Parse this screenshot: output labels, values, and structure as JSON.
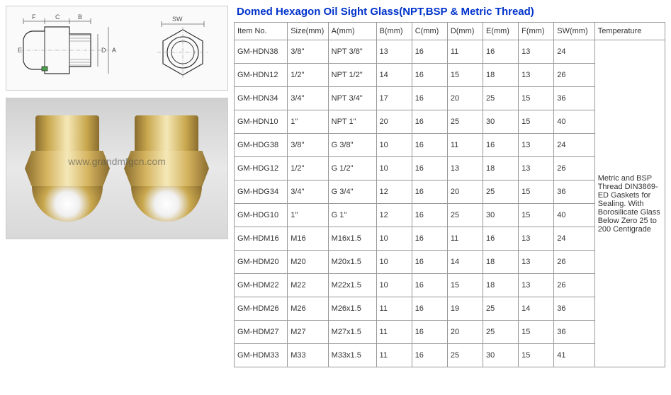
{
  "title": "Domed Hexagon Oil Sight Glass(NPT,BSP & Metric Thread)",
  "watermark": "www.grandmfgcn.com",
  "drawing_labels": {
    "F": "F",
    "C": "C",
    "B": "B",
    "E": "E",
    "D": "D",
    "A": "A",
    "SW": "SW"
  },
  "table": {
    "columns": [
      "Item No.",
      "Size(mm)",
      "A(mm)",
      "B(mm)",
      "C(mm)",
      "D(mm)",
      "E(mm)",
      "F(mm)",
      "SW(mm)",
      "Temperature"
    ],
    "rows": [
      {
        "item": "GM-HDN38",
        "size": "3/8\"",
        "a": "NPT 3/8\"",
        "b": "13",
        "c": "16",
        "d": "11",
        "e": "16",
        "f": "13",
        "sw": "24"
      },
      {
        "item": "GM-HDN12",
        "size": "1/2\"",
        "a": "NPT 1/2\"",
        "b": "14",
        "c": "16",
        "d": "15",
        "e": "18",
        "f": "13",
        "sw": "26"
      },
      {
        "item": "GM-HDN34",
        "size": "3/4\"",
        "a": "NPT 3/4\"",
        "b": "17",
        "c": "16",
        "d": "20",
        "e": "25",
        "f": "15",
        "sw": "36"
      },
      {
        "item": "GM-HDN10",
        "size": "1\"",
        "a": "NPT 1\"",
        "b": "20",
        "c": "16",
        "d": "25",
        "e": "30",
        "f": "15",
        "sw": "40"
      },
      {
        "item": "GM-HDG38",
        "size": "3/8\"",
        "a": "G 3/8\"",
        "b": "10",
        "c": "16",
        "d": "11",
        "e": "16",
        "f": "13",
        "sw": "24"
      },
      {
        "item": "GM-HDG12",
        "size": "1/2\"",
        "a": "G 1/2\"",
        "b": "10",
        "c": "16",
        "d": "13",
        "e": "18",
        "f": "13",
        "sw": "26"
      },
      {
        "item": "GM-HDG34",
        "size": "3/4\"",
        "a": "G 3/4\"",
        "b": "12",
        "c": "16",
        "d": "20",
        "e": "25",
        "f": "15",
        "sw": "36"
      },
      {
        "item": "GM-HDG10",
        "size": "1\"",
        "a": "G 1\"",
        "b": "12",
        "c": "16",
        "d": "25",
        "e": "30",
        "f": "15",
        "sw": "40"
      },
      {
        "item": "GM-HDM16",
        "size": "M16",
        "a": "M16x1.5",
        "b": "10",
        "c": "16",
        "d": "11",
        "e": "16",
        "f": "13",
        "sw": "24"
      },
      {
        "item": "GM-HDM20",
        "size": "M20",
        "a": "M20x1.5",
        "b": "10",
        "c": "16",
        "d": "14",
        "e": "18",
        "f": "13",
        "sw": "26"
      },
      {
        "item": "GM-HDM22",
        "size": "M22",
        "a": "M22x1.5",
        "b": "10",
        "c": "16",
        "d": "15",
        "e": "18",
        "f": "13",
        "sw": "26"
      },
      {
        "item": "GM-HDM26",
        "size": "M26",
        "a": "M26x1.5",
        "b": "11",
        "c": "16",
        "d": "19",
        "e": "25",
        "f": "14",
        "sw": "36"
      },
      {
        "item": "GM-HDM27",
        "size": "M27",
        "a": "M27x1.5",
        "b": "11",
        "c": "16",
        "d": "20",
        "e": "25",
        "f": "15",
        "sw": "36"
      },
      {
        "item": "GM-HDM33",
        "size": "M33",
        "a": "M33x1.5",
        "b": "11",
        "c": "16",
        "d": "25",
        "e": "30",
        "f": "15",
        "sw": "41"
      }
    ],
    "temperature_note": "Metric and BSP Thread DIN3869-ED Gaskets for Sealing.  With Borosilicate Glass Below Zero 25 to 200 Centigrade"
  },
  "colors": {
    "title_color": "#0033cc",
    "border_color": "#999999",
    "text_color": "#333333",
    "background": "#ffffff"
  }
}
